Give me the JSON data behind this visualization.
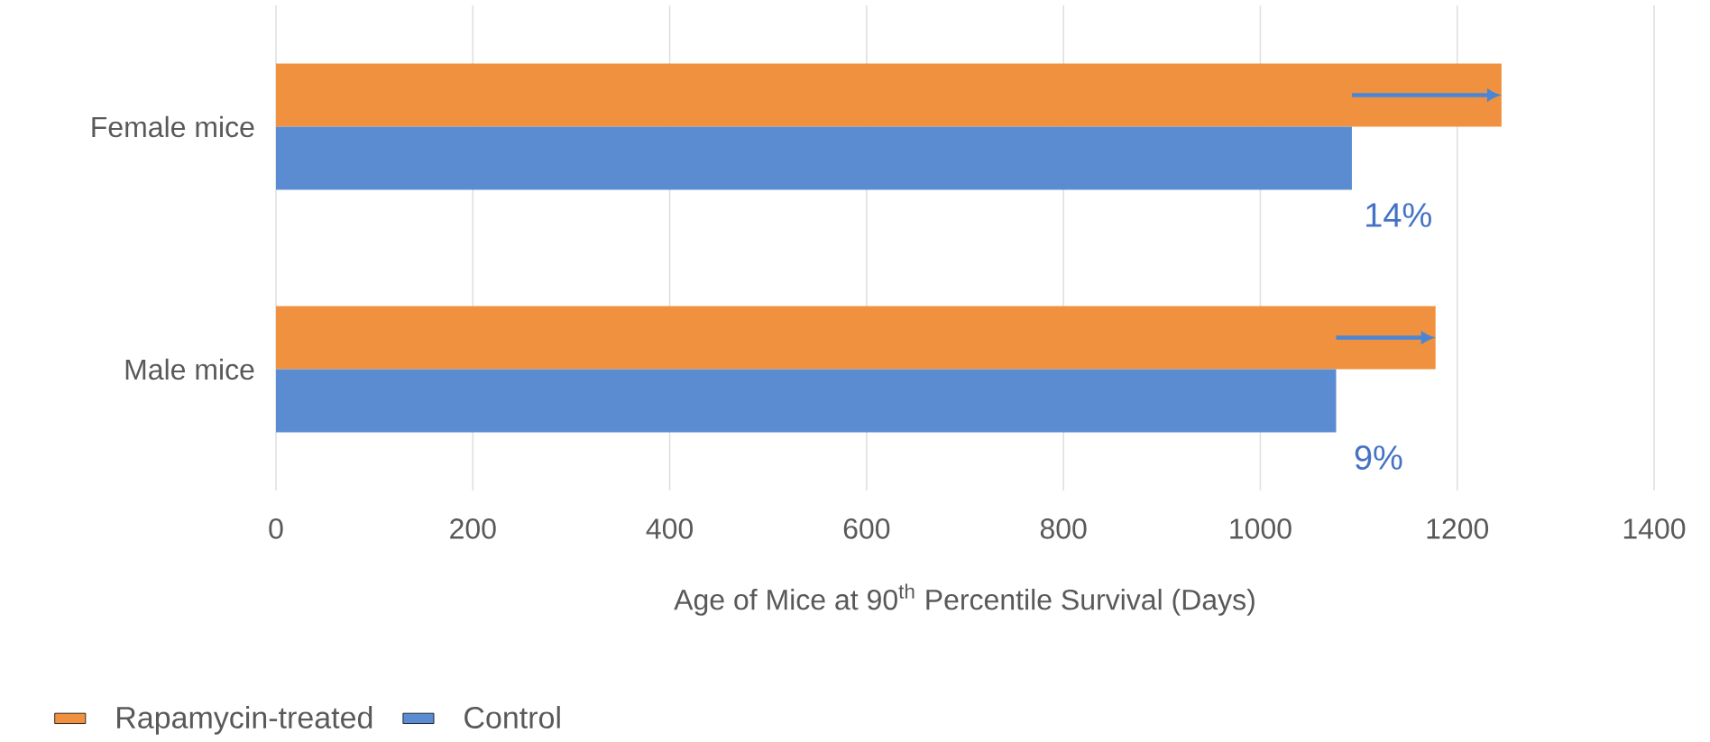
{
  "chart_data": {
    "type": "bar",
    "orientation": "horizontal",
    "categories": [
      "Female mice",
      "Male mice"
    ],
    "series": [
      {
        "name": "Rapamycin-treated",
        "color": "#f0913f",
        "values": [
          1245,
          1178
        ]
      },
      {
        "name": "Control",
        "color": "#5b8bd0",
        "values": [
          1093,
          1077
        ]
      }
    ],
    "xlim": [
      0,
      1400
    ],
    "xticks": [
      0,
      200,
      400,
      600,
      800,
      1000,
      1200,
      1400
    ],
    "xlabel": "Age of Mice at 90$^{th}$ Percentile Survival (Days)",
    "grid": "x",
    "legend": "bottom left",
    "annotations": [
      {
        "text": "14%",
        "x": 1140,
        "y": "Female mice"
      },
      {
        "text": "9%",
        "x": 1120,
        "y": "Male mice"
      }
    ]
  }
}
